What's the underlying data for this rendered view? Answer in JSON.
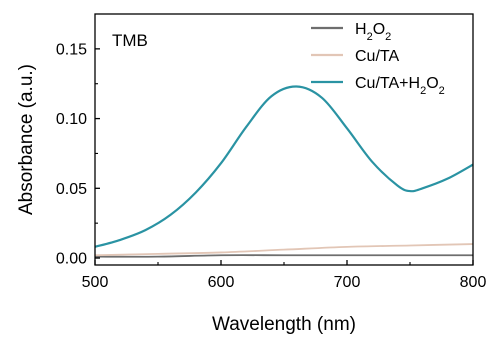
{
  "chart_data": {
    "type": "line",
    "annotation": "TMB",
    "xlabel": "Wavelength (nm)",
    "ylabel": "Absorbance (a.u.)",
    "xlim": [
      500,
      800
    ],
    "ylim": [
      -0.005,
      0.175
    ],
    "xticks": [
      500,
      600,
      700,
      800
    ],
    "yticks": [
      0.0,
      0.05,
      0.1,
      0.15
    ],
    "xtick_labels": [
      "500",
      "600",
      "700",
      "800"
    ],
    "ytick_labels": [
      "0.00",
      "0.05",
      "0.10",
      "0.15"
    ],
    "grid": false,
    "legend_position": "top-right",
    "series": [
      {
        "name": "H2O2",
        "legend_main": "H",
        "legend_sub1": "2",
        "legend_mid": "O",
        "legend_sub2": "2",
        "legend_tail": "",
        "color": "#6e6e6e",
        "x": [
          500,
          550,
          600,
          650,
          700,
          750,
          800
        ],
        "y": [
          0.001,
          0.001,
          0.002,
          0.002,
          0.002,
          0.002,
          0.002
        ]
      },
      {
        "name": "Cu/TA",
        "legend_main": "Cu/TA",
        "color": "#e2c6b6",
        "x": [
          500,
          550,
          600,
          650,
          700,
          750,
          800
        ],
        "y": [
          0.002,
          0.003,
          0.004,
          0.006,
          0.008,
          0.009,
          0.01
        ]
      },
      {
        "name": "Cu/TA+H2O2",
        "legend_main": "Cu/TA+H",
        "legend_sub1": "2",
        "legend_mid": "O",
        "legend_sub2": "2",
        "legend_tail": "",
        "color": "#2a93a3",
        "x": [
          500,
          520,
          540,
          560,
          580,
          600,
          620,
          640,
          660,
          680,
          700,
          720,
          740,
          750,
          760,
          780,
          800
        ],
        "y": [
          0.008,
          0.013,
          0.02,
          0.031,
          0.047,
          0.068,
          0.094,
          0.116,
          0.123,
          0.115,
          0.093,
          0.069,
          0.052,
          0.048,
          0.05,
          0.057,
          0.067
        ]
      }
    ]
  }
}
